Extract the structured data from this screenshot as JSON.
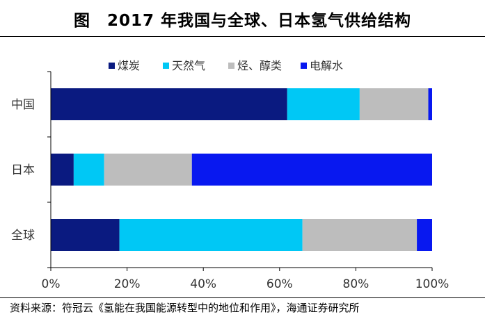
{
  "title": "图　2017 年我国与全球、日本氢气供给结构",
  "source": "资料来源：符冠云《氢能在我国能源转型中的地位和作用》，海通证券研究所",
  "chart_data": {
    "type": "bar",
    "orientation": "horizontal",
    "stacked": true,
    "title": "图　2017 年我国与全球、日本氢气供给结构",
    "categories": [
      "中国",
      "日本",
      "全球"
    ],
    "series": [
      {
        "name": "煤炭",
        "color": "#0a1a80",
        "values": [
          62,
          6,
          18
        ]
      },
      {
        "name": "天然气",
        "color": "#00c8f5",
        "values": [
          19,
          8,
          48
        ]
      },
      {
        "name": "烃、醇类",
        "color": "#bdbdbd",
        "values": [
          18,
          23,
          30
        ]
      },
      {
        "name": "电解水",
        "color": "#0818f0",
        "values": [
          1,
          63,
          4
        ]
      }
    ],
    "xlim": [
      0,
      100
    ],
    "xticks": [
      "0%",
      "20%",
      "40%",
      "60%",
      "80%",
      "100%"
    ],
    "legend_position": "top-center",
    "grid": false
  }
}
